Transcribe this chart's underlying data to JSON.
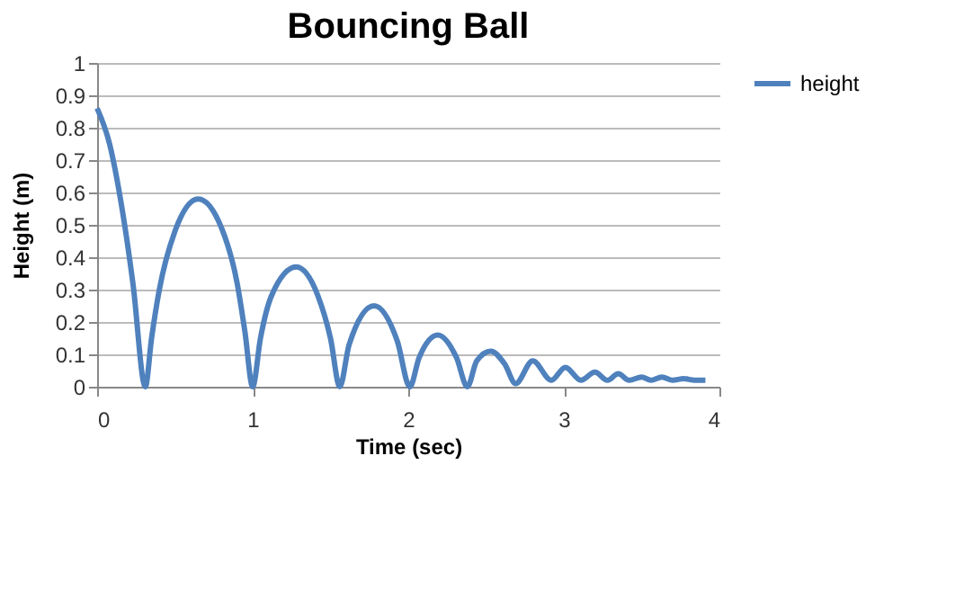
{
  "chart_data": {
    "type": "line",
    "title": "Bouncing Ball",
    "xlabel": "Time (sec)",
    "ylabel": "Height (m)",
    "series": [
      {
        "name": "height",
        "color": "#4f81bd",
        "x": [
          0,
          0.08,
          0.15,
          0.23,
          0.31,
          0.35,
          0.4,
          0.5,
          0.65,
          0.8,
          0.9,
          0.95,
          1.0,
          1.05,
          1.12,
          1.28,
          1.42,
          1.5,
          1.56,
          1.62,
          1.78,
          1.93,
          2.01,
          2.07,
          2.19,
          2.31,
          2.38,
          2.44,
          2.53,
          2.62,
          2.69,
          2.8,
          2.92,
          3.01,
          3.11,
          3.2,
          3.28,
          3.35,
          3.42,
          3.5,
          3.56,
          3.63,
          3.7,
          3.77,
          3.84,
          3.91
        ],
        "values": [
          0.86,
          0.75,
          0.58,
          0.32,
          0,
          0.15,
          0.3,
          0.48,
          0.58,
          0.49,
          0.32,
          0.17,
          0,
          0.15,
          0.28,
          0.37,
          0.28,
          0.15,
          0,
          0.13,
          0.25,
          0.14,
          0,
          0.09,
          0.16,
          0.09,
          0,
          0.08,
          0.11,
          0.07,
          0.01,
          0.08,
          0.02,
          0.06,
          0.02,
          0.045,
          0.02,
          0.04,
          0.02,
          0.03,
          0.02,
          0.03,
          0.02,
          0.025,
          0.02,
          0.02
        ]
      }
    ],
    "xlim": [
      0,
      4
    ],
    "xticks": [
      0,
      1,
      2,
      3,
      4
    ],
    "ylim": [
      0,
      1
    ],
    "yticks": [
      0,
      0.1,
      0.2,
      0.3,
      0.4,
      0.5,
      0.6,
      0.7,
      0.8,
      0.9,
      1
    ],
    "grid": "y",
    "legend": "right",
    "marker": "none",
    "line_style": "solid"
  }
}
